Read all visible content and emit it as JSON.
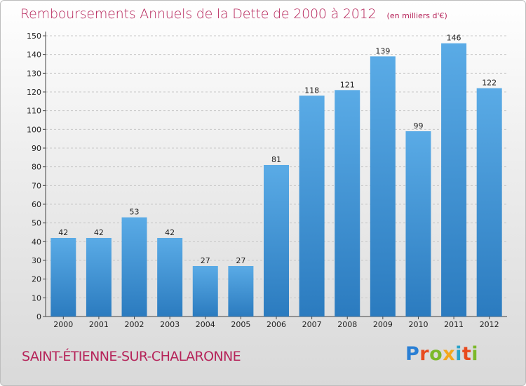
{
  "header": {
    "title": "Remboursements Annuels de la Dette de 2000 à 2012",
    "subtitle": "(en milliers d'€)"
  },
  "footer": {
    "commune": "SAINT-ÉTIENNE-SUR-CHALARONNE",
    "logo": "Proxiti"
  },
  "colors": {
    "title": "#b6245a",
    "bar_top": "#5aabe6",
    "bar_bottom": "#2b7bbf",
    "grid": "#c8c8c8"
  },
  "chart_data": {
    "type": "bar",
    "categories": [
      "2000",
      "2001",
      "2002",
      "2003",
      "2004",
      "2005",
      "2006",
      "2007",
      "2008",
      "2009",
      "2010",
      "2011",
      "2012"
    ],
    "values": [
      42,
      42,
      53,
      42,
      27,
      27,
      81,
      118,
      121,
      139,
      99,
      146,
      122
    ],
    "yticks": [
      0,
      10,
      20,
      30,
      40,
      50,
      60,
      70,
      80,
      90,
      100,
      110,
      120,
      130,
      140,
      150
    ],
    "ylim": [
      0,
      150
    ],
    "grid": true,
    "legend": "none"
  }
}
